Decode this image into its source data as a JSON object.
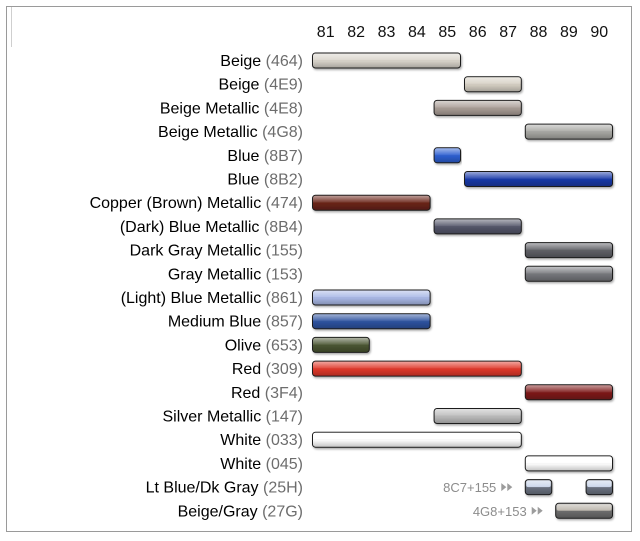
{
  "chart_data": {
    "type": "gantt",
    "years": [
      "81",
      "82",
      "83",
      "84",
      "85",
      "86",
      "87",
      "88",
      "89",
      "90"
    ],
    "rows": [
      {
        "name": "Beige",
        "code": "(464)",
        "bars": [
          {
            "start": 81,
            "end": 85,
            "color": "#d9d4cb"
          }
        ]
      },
      {
        "name": "Beige",
        "code": "(4E9)",
        "bars": [
          {
            "start": 86,
            "end": 87,
            "color": "#d6d0c4"
          }
        ]
      },
      {
        "name": "Beige Metallic",
        "code": "(4E8)",
        "bars": [
          {
            "start": 85,
            "end": 87,
            "color": "#a99d96"
          }
        ]
      },
      {
        "name": "Beige Metallic",
        "code": "(4G8)",
        "bars": [
          {
            "start": 88,
            "end": 90,
            "color": "#a7a7a3"
          }
        ]
      },
      {
        "name": "Blue",
        "code": "(8B7)",
        "bars": [
          {
            "start": 85,
            "end": 85,
            "color": "#2d5fd1"
          }
        ]
      },
      {
        "name": "Blue",
        "code": "(8B2)",
        "bars": [
          {
            "start": 86,
            "end": 90,
            "color": "#1939a8"
          }
        ]
      },
      {
        "name": "Copper (Brown) Metallic",
        "code": "(474)",
        "bars": [
          {
            "start": 81,
            "end": 84,
            "color": "#6a2418"
          }
        ]
      },
      {
        "name": "(Dark) Blue Metallic",
        "code": "(8B4)",
        "bars": [
          {
            "start": 85,
            "end": 87,
            "color": "#54566a"
          }
        ]
      },
      {
        "name": "Dark Gray Metallic",
        "code": "(155)",
        "bars": [
          {
            "start": 88,
            "end": 90,
            "color": "#5f6066"
          }
        ]
      },
      {
        "name": "Gray Metallic",
        "code": "(153)",
        "bars": [
          {
            "start": 88,
            "end": 90,
            "color": "#76777c"
          }
        ]
      },
      {
        "name": "(Light) Blue Metallic",
        "code": "(861)",
        "bars": [
          {
            "start": 81,
            "end": 84,
            "color": "#a9b8e6"
          }
        ]
      },
      {
        "name": "Medium Blue",
        "code": "(857)",
        "bars": [
          {
            "start": 81,
            "end": 84,
            "color": "#2e53a0"
          }
        ]
      },
      {
        "name": "Olive",
        "code": "(653)",
        "bars": [
          {
            "start": 81,
            "end": 82,
            "color": "#4a5532"
          }
        ]
      },
      {
        "name": "Red",
        "code": "(309)",
        "bars": [
          {
            "start": 81,
            "end": 87,
            "color": "#e0382a"
          }
        ]
      },
      {
        "name": "Red",
        "code": "(3F4)",
        "bars": [
          {
            "start": 88,
            "end": 90,
            "color": "#7e1a1a"
          }
        ]
      },
      {
        "name": "Silver Metallic",
        "code": "(147)",
        "bars": [
          {
            "start": 85,
            "end": 87,
            "color": "#bcbcbc"
          }
        ]
      },
      {
        "name": "White",
        "code": "(033)",
        "bars": [
          {
            "start": 81,
            "end": 87,
            "color": "#ffffff"
          }
        ]
      },
      {
        "name": "White",
        "code": "(045)",
        "bars": [
          {
            "start": 88,
            "end": 90,
            "color": "#ffffff"
          }
        ]
      },
      {
        "name": "Lt Blue/Dk Gray",
        "code": "(25H)",
        "note": "8C7+155",
        "bars": [
          {
            "start": 88,
            "end": 88,
            "color": "#6b7280",
            "top": "#c9d5ea"
          },
          {
            "start": 90,
            "end": 90,
            "color": "#6b7280",
            "top": "#c9d5ea"
          }
        ]
      },
      {
        "name": "Beige/Gray",
        "code": "(27G)",
        "note": "4G8+153",
        "bars": [
          {
            "start": 89,
            "end": 90,
            "color": "#6e6e6e",
            "top": "#b8b2a8"
          }
        ]
      }
    ]
  }
}
